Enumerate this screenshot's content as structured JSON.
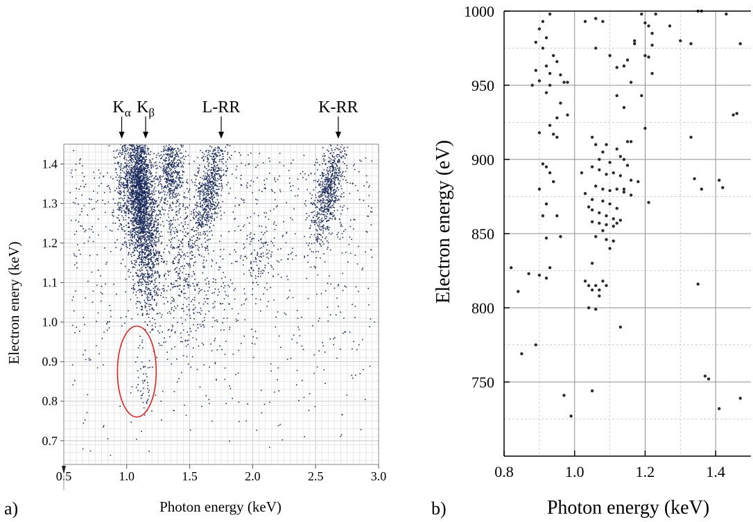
{
  "chart_data": [
    {
      "panel_label": "a)",
      "type": "scatter",
      "xlabel": "Photon energy (keV)",
      "ylabel": "Electron enery (keV)",
      "xlim": [
        0.5,
        3.0
      ],
      "ylim": [
        0.64,
        1.45
      ],
      "x_ticks": [
        "0.5",
        "1.0",
        "1.5",
        "2.0",
        "2.5",
        "3.0"
      ],
      "y_ticks": [
        "0.7",
        "0.8",
        "0.9",
        "1.0",
        "1.1",
        "1.2",
        "1.3",
        "1.4"
      ],
      "grid": true,
      "point_color": "#1a2b5c",
      "annotations": [
        {
          "label": "K",
          "sub": "α",
          "x": 0.96
        },
        {
          "label": "K",
          "sub": "β",
          "x": 1.15
        },
        {
          "label": "L-RR",
          "x": 1.75
        },
        {
          "label": "K-RR",
          "x": 2.68
        }
      ],
      "highlight_ellipse": {
        "cx": 1.08,
        "cy": 0.875,
        "rx": 0.28,
        "ry": 0.115,
        "color": "#e02020"
      },
      "density_clusters": [
        {
          "x": 1.0,
          "y": 1.36,
          "sx": 0.05,
          "sy": 0.08,
          "n": 450,
          "tilt": 0.0
        },
        {
          "x": 1.1,
          "y": 1.34,
          "sx": 0.04,
          "sy": 0.1,
          "n": 1500,
          "tilt": 0.0
        },
        {
          "x": 1.17,
          "y": 1.22,
          "sx": 0.05,
          "sy": 0.1,
          "n": 900,
          "tilt": 0.0
        },
        {
          "x": 1.35,
          "y": 1.38,
          "sx": 0.05,
          "sy": 0.05,
          "n": 450,
          "tilt": 0.0
        },
        {
          "x": 1.66,
          "y": 1.34,
          "sx": 0.05,
          "sy": 0.07,
          "n": 650,
          "tilt": 1.0
        },
        {
          "x": 2.6,
          "y": 1.33,
          "sx": 0.05,
          "sy": 0.07,
          "n": 650,
          "tilt": 1.0
        },
        {
          "x": 2.05,
          "y": 1.16,
          "sx": 0.06,
          "sy": 0.04,
          "n": 90,
          "tilt": 0.0
        },
        {
          "x": 1.4,
          "y": 1.18,
          "sx": 0.1,
          "sy": 0.09,
          "n": 300,
          "tilt": 0.0
        },
        {
          "x": 1.6,
          "y": 1.05,
          "sx": 0.2,
          "sy": 0.08,
          "n": 180,
          "tilt": 0.0
        },
        {
          "x": 1.13,
          "y": 0.85,
          "sx": 0.03,
          "sy": 0.04,
          "n": 35,
          "tilt": 0.0
        }
      ],
      "background_points": 900
    },
    {
      "panel_label": "b)",
      "type": "scatter",
      "xlabel": "Photon energy (keV)",
      "ylabel": "Electron energy (eV)",
      "xlim": [
        0.8,
        1.5
      ],
      "ylim": [
        700,
        1000
      ],
      "x_ticks": [
        "0.8",
        "1.0",
        "1.2",
        "1.4"
      ],
      "y_ticks": [
        "750",
        "800",
        "850",
        "900",
        "950",
        "1000"
      ],
      "grid": true,
      "point_color": "#2a2a2a",
      "points": [
        [
          0.93,
          998
        ],
        [
          0.91,
          993
        ],
        [
          0.9,
          988
        ],
        [
          0.92,
          982
        ],
        [
          0.89,
          979
        ],
        [
          0.91,
          975
        ],
        [
          0.94,
          970
        ],
        [
          0.95,
          966
        ],
        [
          0.92,
          963
        ],
        [
          0.89,
          960
        ],
        [
          0.93,
          958
        ],
        [
          0.96,
          957
        ],
        [
          0.9,
          953
        ],
        [
          0.93,
          950
        ],
        [
          0.97,
          952
        ],
        [
          0.98,
          952
        ],
        [
          0.88,
          950
        ],
        [
          0.92,
          945
        ],
        [
          0.96,
          938
        ],
        [
          0.98,
          930
        ],
        [
          0.95,
          928
        ],
        [
          0.93,
          923
        ],
        [
          0.9,
          918
        ],
        [
          0.94,
          917
        ],
        [
          0.95,
          915
        ],
        [
          1.03,
          993
        ],
        [
          1.06,
          995
        ],
        [
          1.08,
          993
        ],
        [
          1.06,
          975
        ],
        [
          1.1,
          970
        ],
        [
          1.12,
          962
        ],
        [
          1.14,
          963
        ],
        [
          1.12,
          943
        ],
        [
          1.14,
          935
        ],
        [
          1.16,
          952
        ],
        [
          1.17,
          978
        ],
        [
          1.17,
          980
        ],
        [
          1.15,
          967
        ],
        [
          1.19,
          998
        ],
        [
          1.2,
          992
        ],
        [
          1.21,
          990
        ],
        [
          1.22,
          985
        ],
        [
          1.23,
          998
        ],
        [
          1.22,
          977
        ],
        [
          1.2,
          970
        ],
        [
          1.21,
          969
        ],
        [
          1.22,
          958
        ],
        [
          1.27,
          990
        ],
        [
          1.3,
          980
        ],
        [
          1.35,
          1000
        ],
        [
          1.36,
          1000
        ],
        [
          1.43,
          998
        ],
        [
          1.33,
          978
        ],
        [
          1.47,
          978
        ],
        [
          1.19,
          943
        ],
        [
          1.2,
          921
        ],
        [
          1.46,
          931
        ],
        [
          1.45,
          930
        ],
        [
          0.91,
          897
        ],
        [
          0.92,
          895
        ],
        [
          0.93,
          891
        ],
        [
          0.94,
          885
        ],
        [
          0.9,
          880
        ],
        [
          0.92,
          870
        ],
        [
          0.91,
          862
        ],
        [
          0.95,
          862
        ],
        [
          0.96,
          848
        ],
        [
          0.92,
          847
        ],
        [
          0.82,
          827
        ],
        [
          0.84,
          811
        ],
        [
          0.87,
          823
        ],
        [
          0.9,
          822
        ],
        [
          0.92,
          820
        ],
        [
          0.93,
          827
        ],
        [
          0.89,
          775
        ],
        [
          0.85,
          769
        ],
        [
          0.97,
          741
        ],
        [
          0.99,
          727
        ],
        [
          1.05,
          915
        ],
        [
          1.06,
          910
        ],
        [
          1.08,
          905
        ],
        [
          1.09,
          910
        ],
        [
          1.12,
          907
        ],
        [
          1.07,
          900
        ],
        [
          1.1,
          898
        ],
        [
          1.13,
          902
        ],
        [
          1.14,
          900
        ],
        [
          1.15,
          896
        ],
        [
          1.05,
          895
        ],
        [
          1.07,
          893
        ],
        [
          1.09,
          890
        ],
        [
          1.11,
          891
        ],
        [
          1.13,
          889
        ],
        [
          1.16,
          886
        ],
        [
          1.18,
          885
        ],
        [
          1.06,
          882
        ],
        [
          1.08,
          880
        ],
        [
          1.1,
          879
        ],
        [
          1.12,
          880
        ],
        [
          1.14,
          878
        ],
        [
          1.16,
          876
        ],
        [
          1.05,
          873
        ],
        [
          1.08,
          872
        ],
        [
          1.1,
          870
        ],
        [
          1.12,
          867
        ],
        [
          1.05,
          866
        ],
        [
          1.07,
          864
        ],
        [
          1.09,
          862
        ],
        [
          1.11,
          860
        ],
        [
          1.13,
          859
        ],
        [
          1.05,
          858
        ],
        [
          1.07,
          857
        ],
        [
          1.09,
          856
        ],
        [
          1.11,
          855
        ],
        [
          1.12,
          857
        ],
        [
          1.08,
          852
        ],
        [
          1.06,
          848
        ],
        [
          1.09,
          846
        ],
        [
          1.11,
          845
        ],
        [
          1.1,
          840
        ],
        [
          1.02,
          891
        ],
        [
          1.03,
          877
        ],
        [
          1.04,
          868
        ],
        [
          1.05,
          830
        ],
        [
          1.03,
          818
        ],
        [
          1.04,
          815
        ],
        [
          1.06,
          815
        ],
        [
          1.07,
          812
        ],
        [
          1.08,
          818
        ],
        [
          1.05,
          812
        ],
        [
          1.04,
          800
        ],
        [
          1.06,
          799
        ],
        [
          1.07,
          808
        ],
        [
          1.09,
          815
        ],
        [
          1.13,
          787
        ],
        [
          1.21,
          871
        ],
        [
          1.05,
          744
        ],
        [
          1.14,
          880
        ],
        [
          1.15,
          912
        ],
        [
          1.16,
          912
        ],
        [
          1.33,
          915
        ],
        [
          1.34,
          887
        ],
        [
          1.36,
          880
        ],
        [
          1.41,
          886
        ],
        [
          1.42,
          881
        ],
        [
          1.35,
          816
        ],
        [
          1.37,
          754
        ],
        [
          1.38,
          752
        ],
        [
          1.41,
          732
        ],
        [
          1.47,
          739
        ]
      ]
    }
  ]
}
